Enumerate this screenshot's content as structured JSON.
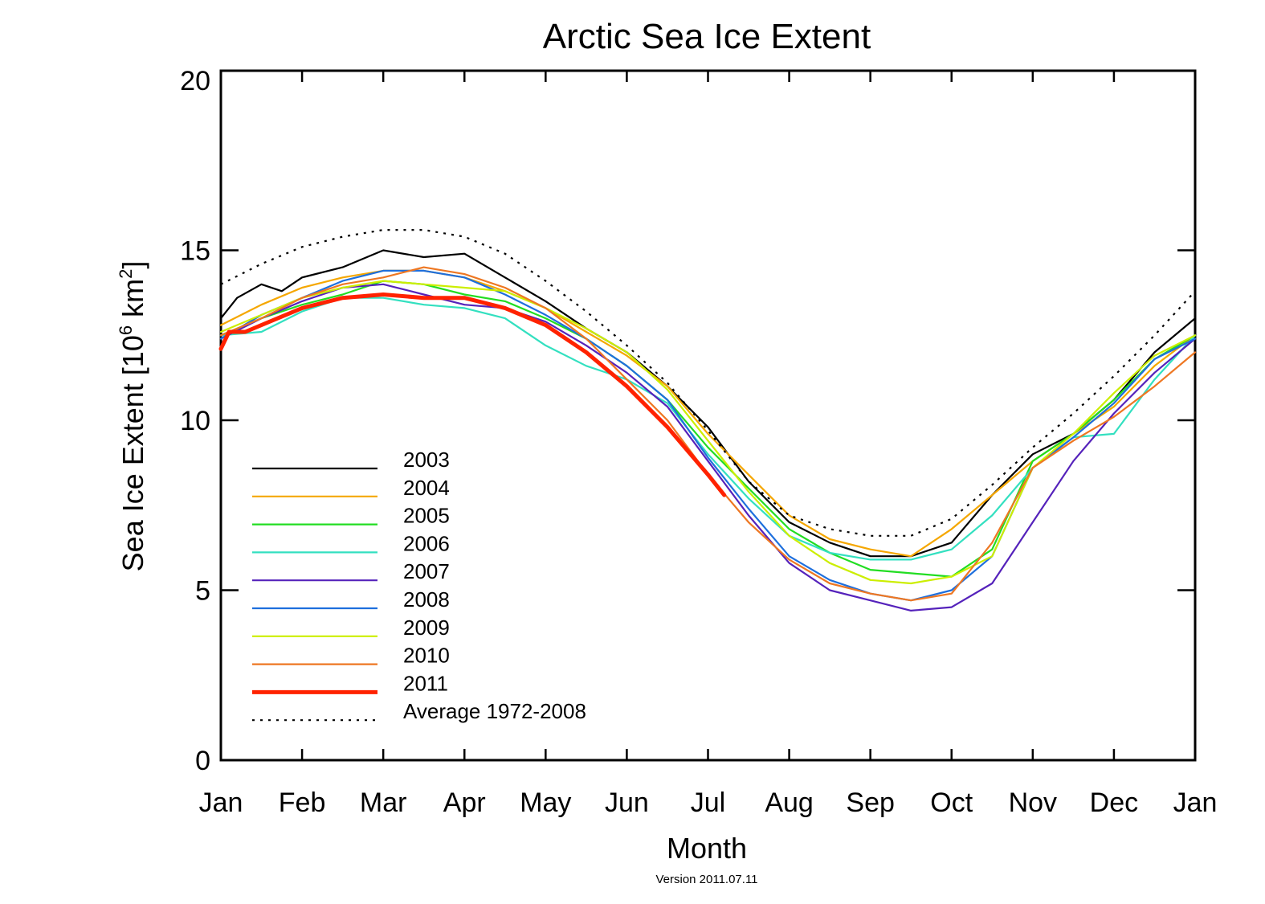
{
  "chart_data": {
    "type": "line",
    "title": "Arctic Sea Ice Extent",
    "xlabel": "Month",
    "ylabel_main": "Sea Ice Extent [10",
    "ylabel_sup1": "6",
    "ylabel_mid": " km",
    "ylabel_sup2": "2",
    "ylabel_end": "]",
    "footer": "Version 2011.07.11",
    "xlim": [
      0,
      12
    ],
    "ylim": [
      0,
      20
    ],
    "x_unit": "month index (0 = Jan 1, 12 = Jan 1 of next year)",
    "x_ticks": [
      "Jan",
      "Feb",
      "Mar",
      "Apr",
      "May",
      "Jun",
      "Jul",
      "Aug",
      "Sep",
      "Oct",
      "Nov",
      "Dec",
      "Jan"
    ],
    "y_ticks": [
      "0",
      "5",
      "10",
      "15",
      "20"
    ],
    "grid": false,
    "legend_position": "lower-left",
    "series": [
      {
        "name": "2003",
        "color": "#000000",
        "width": 2.2,
        "dash": "",
        "x": [
          0,
          0.2,
          0.5,
          0.75,
          1,
          1.5,
          2,
          2.5,
          3,
          3.5,
          4,
          4.5,
          5,
          5.5,
          6,
          6.5,
          7,
          7.5,
          8,
          8.5,
          9,
          9.5,
          10,
          10.5,
          11,
          11.5,
          12
        ],
        "y": [
          13.0,
          13.6,
          14.0,
          13.8,
          14.2,
          14.5,
          15.0,
          14.8,
          14.9,
          14.2,
          13.5,
          12.7,
          12.0,
          11.0,
          9.8,
          8.2,
          7.0,
          6.4,
          6.0,
          6.0,
          6.4,
          7.8,
          9.0,
          9.6,
          10.6,
          12.0,
          13.0
        ]
      },
      {
        "name": "2004",
        "color": "#f5a700",
        "width": 2.2,
        "dash": "",
        "x": [
          0,
          0.5,
          1,
          1.5,
          2,
          2.5,
          3,
          3.5,
          4,
          4.5,
          5,
          5.5,
          6,
          6.5,
          7,
          7.5,
          8,
          8.5,
          9,
          9.5,
          10,
          10.5,
          11,
          11.5,
          12
        ],
        "y": [
          12.8,
          13.4,
          13.9,
          14.2,
          14.4,
          14.4,
          14.2,
          13.8,
          13.3,
          12.6,
          11.9,
          11.0,
          9.6,
          8.4,
          7.2,
          6.5,
          6.2,
          6.0,
          6.8,
          7.8,
          8.8,
          9.6,
          10.4,
          11.6,
          12.5
        ]
      },
      {
        "name": "2005",
        "color": "#22dd22",
        "width": 2.2,
        "dash": "",
        "x": [
          0,
          0.5,
          1,
          1.5,
          2,
          2.5,
          3,
          3.5,
          4,
          4.5,
          5,
          5.5,
          6,
          6.5,
          7,
          7.5,
          8,
          8.5,
          9,
          9.5,
          10,
          10.5,
          11,
          11.5,
          12
        ],
        "y": [
          12.5,
          13.0,
          13.4,
          13.7,
          14.1,
          14.0,
          13.7,
          13.5,
          13.0,
          12.4,
          11.6,
          10.6,
          9.2,
          8.0,
          6.8,
          6.1,
          5.6,
          5.5,
          5.4,
          6.2,
          8.8,
          9.6,
          10.6,
          11.8,
          12.5
        ]
      },
      {
        "name": "2006",
        "color": "#33e0c0",
        "width": 2.2,
        "dash": "",
        "x": [
          0,
          0.5,
          1,
          1.5,
          2,
          2.5,
          3,
          3.5,
          4,
          4.5,
          5,
          5.5,
          6,
          6.5,
          7,
          7.5,
          8,
          8.5,
          9,
          9.5,
          10,
          10.5,
          11,
          11.5,
          12
        ],
        "y": [
          12.5,
          12.6,
          13.2,
          13.6,
          13.6,
          13.4,
          13.3,
          13.0,
          12.2,
          11.6,
          11.2,
          10.5,
          9.0,
          7.7,
          6.6,
          6.1,
          5.9,
          5.9,
          6.2,
          7.2,
          8.6,
          9.5,
          9.6,
          11.2,
          12.5
        ]
      },
      {
        "name": "2007",
        "color": "#5522bb",
        "width": 2.2,
        "dash": "",
        "x": [
          0,
          0.5,
          1,
          1.5,
          2,
          2.5,
          3,
          3.5,
          4,
          4.5,
          5,
          5.5,
          6,
          6.5,
          7,
          7.5,
          8,
          8.5,
          9,
          9.5,
          10,
          10.5,
          11,
          11.5,
          12
        ],
        "y": [
          12.4,
          13.0,
          13.5,
          13.9,
          14.0,
          13.7,
          13.4,
          13.3,
          12.9,
          12.2,
          11.4,
          10.4,
          8.8,
          7.2,
          5.8,
          5.0,
          4.7,
          4.4,
          4.5,
          5.2,
          7.0,
          8.8,
          10.2,
          11.4,
          12.4
        ]
      },
      {
        "name": "2008",
        "color": "#1e6fdd",
        "width": 2.2,
        "dash": "",
        "x": [
          0,
          0.5,
          1,
          1.5,
          2,
          2.5,
          3,
          3.5,
          4,
          4.5,
          5,
          5.5,
          6,
          6.5,
          7,
          7.5,
          8,
          8.5,
          9,
          9.5,
          10,
          10.5,
          11,
          11.5,
          12
        ],
        "y": [
          12.4,
          13.1,
          13.6,
          14.1,
          14.4,
          14.4,
          14.2,
          13.7,
          13.1,
          12.4,
          11.6,
          10.6,
          8.9,
          7.4,
          6.0,
          5.3,
          4.9,
          4.7,
          5.0,
          6.0,
          8.6,
          9.5,
          10.5,
          11.8,
          12.4
        ]
      },
      {
        "name": "2009",
        "color": "#ccee00",
        "width": 2.2,
        "dash": "",
        "x": [
          0,
          0.5,
          1,
          1.5,
          2,
          2.5,
          3,
          3.5,
          4,
          4.5,
          5,
          5.5,
          6,
          6.5,
          7,
          7.5,
          8,
          8.5,
          9,
          9.5,
          10,
          10.5,
          11,
          11.5,
          12
        ],
        "y": [
          12.6,
          13.1,
          13.6,
          13.9,
          14.1,
          14.0,
          13.9,
          13.8,
          13.3,
          12.7,
          12.0,
          10.9,
          9.4,
          7.9,
          6.6,
          5.8,
          5.3,
          5.2,
          5.4,
          6.0,
          8.6,
          9.6,
          10.8,
          11.9,
          12.5
        ]
      },
      {
        "name": "2010",
        "color": "#ee7722",
        "width": 2.2,
        "dash": "",
        "x": [
          0,
          0.5,
          1,
          1.5,
          2,
          2.5,
          3,
          3.5,
          4,
          4.5,
          5,
          5.5,
          6,
          6.5,
          7,
          7.5,
          8,
          8.5,
          9,
          9.5,
          10,
          10.5,
          11,
          11.5,
          12
        ],
        "y": [
          12.5,
          13.0,
          13.6,
          14.0,
          14.2,
          14.5,
          14.3,
          13.9,
          13.3,
          12.4,
          11.2,
          10.0,
          8.4,
          7.0,
          5.9,
          5.2,
          4.9,
          4.7,
          4.9,
          6.4,
          8.6,
          9.4,
          10.1,
          11.0,
          12.0
        ]
      },
      {
        "name": "2011",
        "color": "#ff2200",
        "width": 5,
        "dash": "",
        "x": [
          0,
          0.1,
          0.3,
          0.6,
          1,
          1.5,
          2,
          2.5,
          3,
          3.5,
          4,
          4.5,
          5,
          5.5,
          6,
          6.2
        ],
        "y": [
          12.1,
          12.6,
          12.6,
          12.9,
          13.3,
          13.6,
          13.7,
          13.6,
          13.6,
          13.3,
          12.8,
          12.0,
          11.0,
          9.8,
          8.4,
          7.8
        ]
      },
      {
        "name": "Average 1972-2008",
        "color": "#000000",
        "width": 2.2,
        "dash": "3,7",
        "x": [
          0,
          0.5,
          1,
          1.5,
          2,
          2.5,
          3,
          3.5,
          4,
          4.5,
          5,
          5.5,
          6,
          6.5,
          7,
          7.5,
          8,
          8.5,
          9,
          9.5,
          10,
          10.5,
          11,
          11.5,
          12
        ],
        "y": [
          14.0,
          14.6,
          15.1,
          15.4,
          15.6,
          15.6,
          15.4,
          14.9,
          14.1,
          13.2,
          12.2,
          11.1,
          9.7,
          8.2,
          7.2,
          6.8,
          6.6,
          6.6,
          7.1,
          8.1,
          9.2,
          10.2,
          11.3,
          12.5,
          13.8
        ]
      }
    ]
  }
}
